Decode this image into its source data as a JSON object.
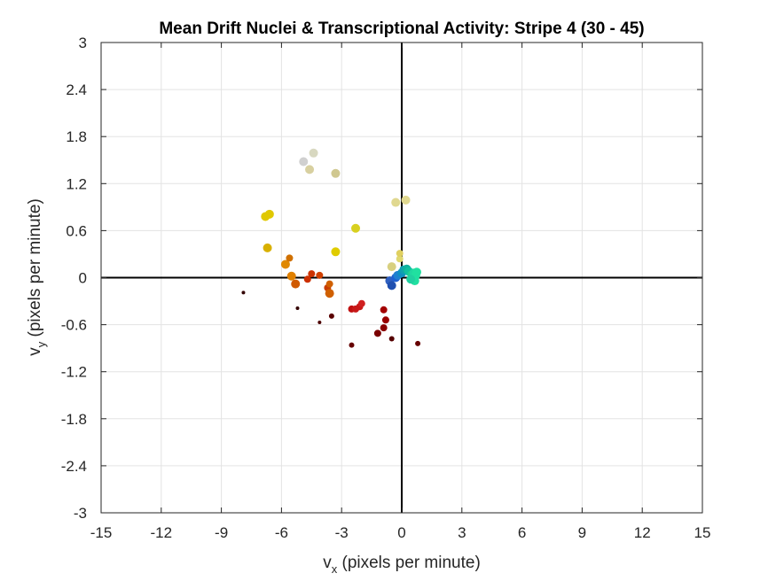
{
  "chart_data": {
    "type": "scatter",
    "title": "Mean Drift Nuclei & Transcriptional Activity: Stripe 4 (30 - 45)",
    "xlabel": {
      "base": "v",
      "sub": "x",
      "rest": " (pixels per minute)"
    },
    "ylabel": {
      "base": "v",
      "sub": "y",
      "rest": " (pixels per minute)"
    },
    "xlim": [
      -15,
      15
    ],
    "ylim": [
      -3,
      3
    ],
    "xticks": [
      -15,
      -12,
      -9,
      -6,
      -3,
      0,
      3,
      6,
      9,
      12,
      15
    ],
    "yticks": [
      -3,
      -2.4,
      -1.8,
      -1.2,
      -0.6,
      0,
      0.6,
      1.2,
      1.8,
      2.4,
      3
    ],
    "xtick_labels": [
      "-15",
      "-12",
      "-9",
      "-6",
      "-3",
      "0",
      "3",
      "6",
      "9",
      "12",
      "15"
    ],
    "ytick_labels": [
      "-3",
      "-2.4",
      "-1.8",
      "-1.2",
      "-0.6",
      "0",
      "0.6",
      "1.2",
      "1.8",
      "2.4",
      "3"
    ],
    "grid": true,
    "zero_lines": true,
    "points": [
      {
        "x": -7.9,
        "y": -0.19,
        "color": "#330000",
        "size": "tiny"
      },
      {
        "x": -5.2,
        "y": -0.39,
        "color": "#330000",
        "size": "tiny"
      },
      {
        "x": -4.1,
        "y": -0.57,
        "color": "#4d0000",
        "size": "tiny"
      },
      {
        "x": -3.5,
        "y": -0.49,
        "color": "#5a0000",
        "size": "small"
      },
      {
        "x": -2.5,
        "y": -0.86,
        "color": "#660000",
        "size": "small"
      },
      {
        "x": -0.5,
        "y": -0.78,
        "color": "#550000",
        "size": "small"
      },
      {
        "x": 0.8,
        "y": -0.84,
        "color": "#660000",
        "size": "small"
      },
      {
        "x": -1.2,
        "y": -0.71,
        "color": "#7a0000",
        "size": "medium"
      },
      {
        "x": -0.9,
        "y": -0.64,
        "color": "#8a0000",
        "size": "medium"
      },
      {
        "x": -0.8,
        "y": -0.54,
        "color": "#990000",
        "size": "medium"
      },
      {
        "x": -0.9,
        "y": -0.41,
        "color": "#a30000",
        "size": "medium"
      },
      {
        "x": -2.5,
        "y": -0.4,
        "color": "#c01010",
        "size": "medium"
      },
      {
        "x": -2.3,
        "y": -0.4,
        "color": "#c81818",
        "size": "medium"
      },
      {
        "x": -2.1,
        "y": -0.37,
        "color": "#c81818",
        "size": "medium"
      },
      {
        "x": -2.0,
        "y": -0.33,
        "color": "#d02020",
        "size": "medium"
      },
      {
        "x": -3.7,
        "y": -0.13,
        "color": "#c83c00",
        "size": "medium"
      },
      {
        "x": -3.6,
        "y": -0.2,
        "color": "#d06000",
        "size": "large"
      },
      {
        "x": -3.6,
        "y": -0.08,
        "color": "#d06000",
        "size": "medium"
      },
      {
        "x": -4.7,
        "y": -0.02,
        "color": "#cc3000",
        "size": "medium"
      },
      {
        "x": -4.5,
        "y": 0.05,
        "color": "#cc3300",
        "size": "medium"
      },
      {
        "x": -4.1,
        "y": 0.03,
        "color": "#d04000",
        "size": "medium"
      },
      {
        "x": -5.3,
        "y": -0.08,
        "color": "#d05a00",
        "size": "large"
      },
      {
        "x": -5.5,
        "y": 0.02,
        "color": "#e08000",
        "size": "large"
      },
      {
        "x": -5.8,
        "y": 0.17,
        "color": "#e08800",
        "size": "large"
      },
      {
        "x": -5.6,
        "y": 0.25,
        "color": "#d07000",
        "size": "medium"
      },
      {
        "x": -6.7,
        "y": 0.38,
        "color": "#d8b000",
        "size": "large"
      },
      {
        "x": -6.8,
        "y": 0.78,
        "color": "#e0c800",
        "size": "large"
      },
      {
        "x": -6.6,
        "y": 0.81,
        "color": "#e0c800",
        "size": "large"
      },
      {
        "x": -3.3,
        "y": 0.33,
        "color": "#e0cc00",
        "size": "large"
      },
      {
        "x": -2.3,
        "y": 0.63,
        "color": "#d8d020",
        "size": "large"
      },
      {
        "x": -4.9,
        "y": 1.48,
        "color": "#d0d0d0",
        "size": "large"
      },
      {
        "x": -4.4,
        "y": 1.59,
        "color": "#d8d8c0",
        "size": "large"
      },
      {
        "x": -4.6,
        "y": 1.38,
        "color": "#d8d0a0",
        "size": "large"
      },
      {
        "x": -3.3,
        "y": 1.33,
        "color": "#d0c890",
        "size": "large"
      },
      {
        "x": -0.3,
        "y": 0.96,
        "color": "#e0d890",
        "size": "large"
      },
      {
        "x": 0.2,
        "y": 0.99,
        "color": "#e0d890",
        "size": "large"
      },
      {
        "x": -0.5,
        "y": 0.14,
        "color": "#d8d080",
        "size": "large"
      },
      {
        "x": -0.1,
        "y": 0.24,
        "color": "#e0d870",
        "size": "medium"
      },
      {
        "x": -0.1,
        "y": 0.31,
        "color": "#e0d060",
        "size": "medium"
      },
      {
        "x": -0.6,
        "y": -0.04,
        "color": "#3060c0",
        "size": "large"
      },
      {
        "x": -0.5,
        "y": -0.1,
        "color": "#2050b0",
        "size": "large"
      },
      {
        "x": -0.3,
        "y": 0.0,
        "color": "#2060d0",
        "size": "large"
      },
      {
        "x": -0.2,
        "y": 0.03,
        "color": "#2080d0",
        "size": "large"
      },
      {
        "x": 0.0,
        "y": 0.06,
        "color": "#1090c0",
        "size": "large"
      },
      {
        "x": 0.1,
        "y": 0.1,
        "color": "#10a0b0",
        "size": "large"
      },
      {
        "x": 0.25,
        "y": 0.11,
        "color": "#10b0a0",
        "size": "large"
      },
      {
        "x": 0.35,
        "y": 0.08,
        "color": "#10c0a0",
        "size": "large"
      },
      {
        "x": 0.5,
        "y": 0.04,
        "color": "#20d090",
        "size": "large"
      },
      {
        "x": 0.55,
        "y": 0.0,
        "color": "#20d8a0",
        "size": "large"
      },
      {
        "x": 0.6,
        "y": 0.06,
        "color": "#20d8a0",
        "size": "large"
      },
      {
        "x": 0.7,
        "y": 0.03,
        "color": "#20e0a0",
        "size": "large"
      },
      {
        "x": 0.65,
        "y": -0.04,
        "color": "#20e0a0",
        "size": "large"
      },
      {
        "x": 0.45,
        "y": -0.02,
        "color": "#20d0a0",
        "size": "large"
      },
      {
        "x": 0.75,
        "y": 0.07,
        "color": "#20e0a0",
        "size": "large"
      }
    ]
  }
}
